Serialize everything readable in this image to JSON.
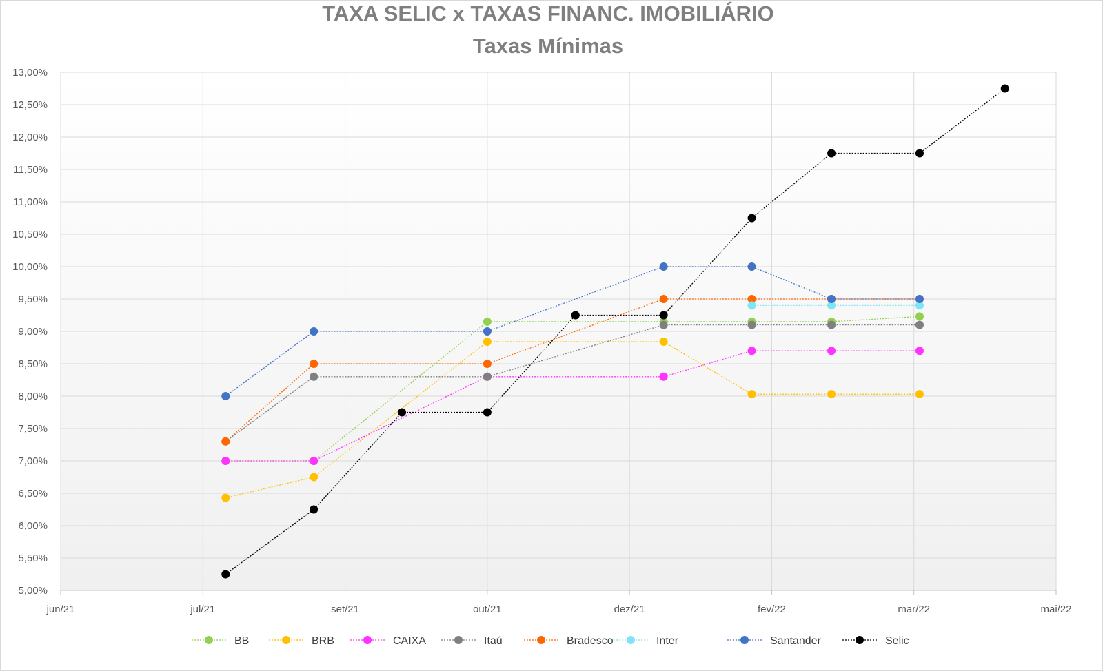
{
  "chart_data": {
    "type": "line",
    "title": "TAXA SELIC x TAXAS FINANC. IMOBILIÁRIO",
    "subtitle": "Taxas Mínimas",
    "xlabel": "",
    "ylabel": "",
    "ylim": [
      5.0,
      13.0
    ],
    "ystep": 0.5,
    "yticks": [
      "5,00%",
      "5,50%",
      "6,00%",
      "6,50%",
      "7,00%",
      "7,50%",
      "8,00%",
      "8,50%",
      "9,00%",
      "9,50%",
      "10,00%",
      "10,50%",
      "11,00%",
      "11,50%",
      "12,00%",
      "12,50%",
      "13,00%"
    ],
    "xlim": [
      "2021-06-01",
      "2022-05-17"
    ],
    "xticks": [
      {
        "date": "2021-06-01",
        "label": "jun/21"
      },
      {
        "date": "2021-07-21",
        "label": "jul/21"
      },
      {
        "date": "2021-09-09",
        "label": "set/21"
      },
      {
        "date": "2021-10-29",
        "label": "out/21"
      },
      {
        "date": "2021-12-18",
        "label": "dez/21"
      },
      {
        "date": "2022-02-06",
        "label": "fev/22"
      },
      {
        "date": "2022-03-28",
        "label": "mar/22"
      },
      {
        "date": "2022-05-17",
        "label": "mai/22"
      }
    ],
    "grid": true,
    "legend_position": "bottom",
    "series": [
      {
        "name": "BB",
        "color": "#92D050",
        "points": [
          [
            "2021-07-29",
            7.0
          ],
          [
            "2021-08-29",
            7.0
          ],
          [
            "2021-10-29",
            9.15
          ],
          [
            "2021-12-30",
            9.15
          ],
          [
            "2022-01-30",
            9.15
          ],
          [
            "2022-02-27",
            9.15
          ],
          [
            "2022-03-30",
            9.23
          ]
        ]
      },
      {
        "name": "BRB",
        "color": "#FFC000",
        "points": [
          [
            "2021-07-29",
            6.43
          ],
          [
            "2021-08-29",
            6.75
          ],
          [
            "2021-10-29",
            8.84
          ],
          [
            "2021-12-30",
            8.84
          ],
          [
            "2022-01-30",
            8.03
          ],
          [
            "2022-02-27",
            8.03
          ],
          [
            "2022-03-30",
            8.03
          ]
        ]
      },
      {
        "name": "CAIXA",
        "color": "#FF33FF",
        "points": [
          [
            "2021-07-29",
            7.0
          ],
          [
            "2021-08-29",
            7.0
          ],
          [
            "2021-10-29",
            8.3
          ],
          [
            "2021-12-30",
            8.3
          ],
          [
            "2022-01-30",
            8.7
          ],
          [
            "2022-02-27",
            8.7
          ],
          [
            "2022-03-30",
            8.7
          ]
        ]
      },
      {
        "name": "Itaú",
        "color": "#808080",
        "points": [
          [
            "2021-07-29",
            7.3
          ],
          [
            "2021-08-29",
            8.3
          ],
          [
            "2021-10-29",
            8.3
          ],
          [
            "2021-12-30",
            9.1
          ],
          [
            "2022-01-30",
            9.1
          ],
          [
            "2022-02-27",
            9.1
          ],
          [
            "2022-03-30",
            9.1
          ]
        ]
      },
      {
        "name": "Bradesco",
        "color": "#FF6600",
        "points": [
          [
            "2021-07-29",
            7.3
          ],
          [
            "2021-08-29",
            8.5
          ],
          [
            "2021-10-29",
            8.5
          ],
          [
            "2021-12-30",
            9.5
          ],
          [
            "2022-01-30",
            9.5
          ],
          [
            "2022-02-27",
            9.5
          ],
          [
            "2022-03-30",
            9.5
          ]
        ]
      },
      {
        "name": "Inter",
        "color": "#7FE5F5",
        "points": [
          [
            "2022-01-30",
            9.4
          ],
          [
            "2022-02-27",
            9.4
          ],
          [
            "2022-03-30",
            9.4
          ]
        ]
      },
      {
        "name": "Santander",
        "color": "#4472C4",
        "points": [
          [
            "2021-07-29",
            8.0
          ],
          [
            "2021-08-29",
            9.0
          ],
          [
            "2021-10-29",
            9.0
          ],
          [
            "2021-12-30",
            10.0
          ],
          [
            "2022-01-30",
            10.0
          ],
          [
            "2022-02-27",
            9.5
          ],
          [
            "2022-03-30",
            9.5
          ]
        ]
      },
      {
        "name": "Selic",
        "color": "#000000",
        "points": [
          [
            "2021-07-29",
            5.25
          ],
          [
            "2021-08-29",
            6.25
          ],
          [
            "2021-09-29",
            7.75
          ],
          [
            "2021-10-29",
            7.75
          ],
          [
            "2021-11-29",
            9.25
          ],
          [
            "2021-12-30",
            9.25
          ],
          [
            "2022-01-30",
            10.75
          ],
          [
            "2022-02-27",
            11.75
          ],
          [
            "2022-03-30",
            11.75
          ],
          [
            "2022-04-29",
            12.75
          ]
        ]
      }
    ]
  }
}
